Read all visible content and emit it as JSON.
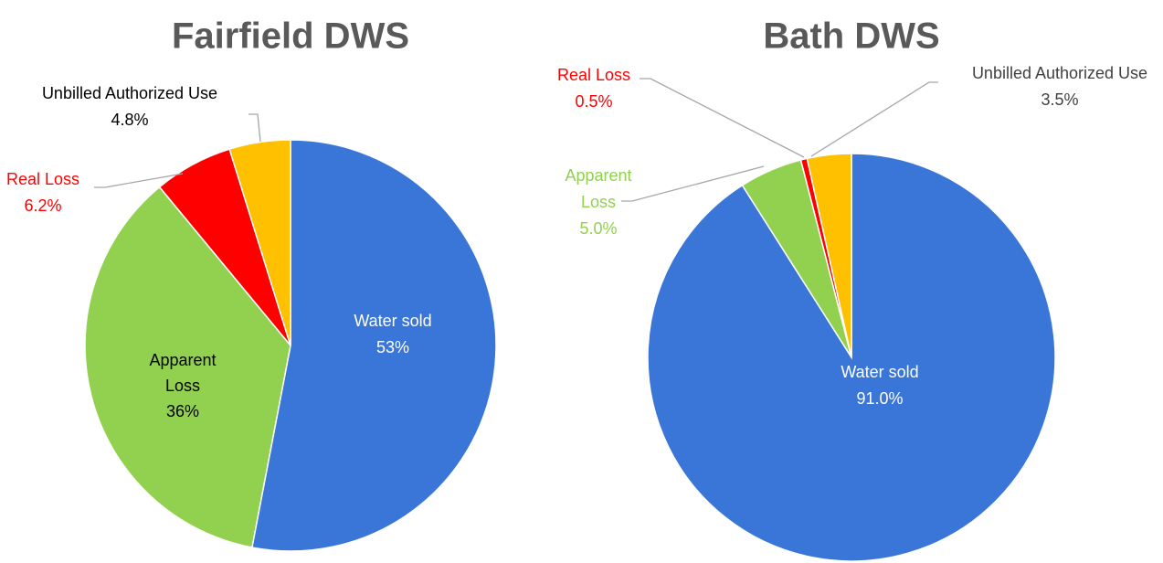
{
  "chart_data": [
    {
      "type": "pie",
      "title": "Fairfield DWS",
      "categories": [
        "Water sold",
        "Apparent Loss",
        "Real Loss",
        "Unbilled Authorized Use"
      ],
      "values": [
        53,
        36,
        6.2,
        4.8
      ],
      "value_labels": [
        "53%",
        "36%",
        "6.2%",
        "4.8%"
      ],
      "colors": [
        "#3a76d8",
        "#92d050",
        "#ff0000",
        "#ffc000"
      ]
    },
    {
      "type": "pie",
      "title": "Bath DWS",
      "categories": [
        "Water sold",
        "Apparent Loss",
        "Real Loss",
        "Unbilled Authorized Use"
      ],
      "values": [
        91.0,
        5.0,
        0.5,
        3.5
      ],
      "value_labels": [
        "91.0%",
        "5.0%",
        "0.5%",
        "3.5%"
      ],
      "colors": [
        "#3a76d8",
        "#92d050",
        "#ff0000",
        "#ffc000"
      ]
    }
  ]
}
